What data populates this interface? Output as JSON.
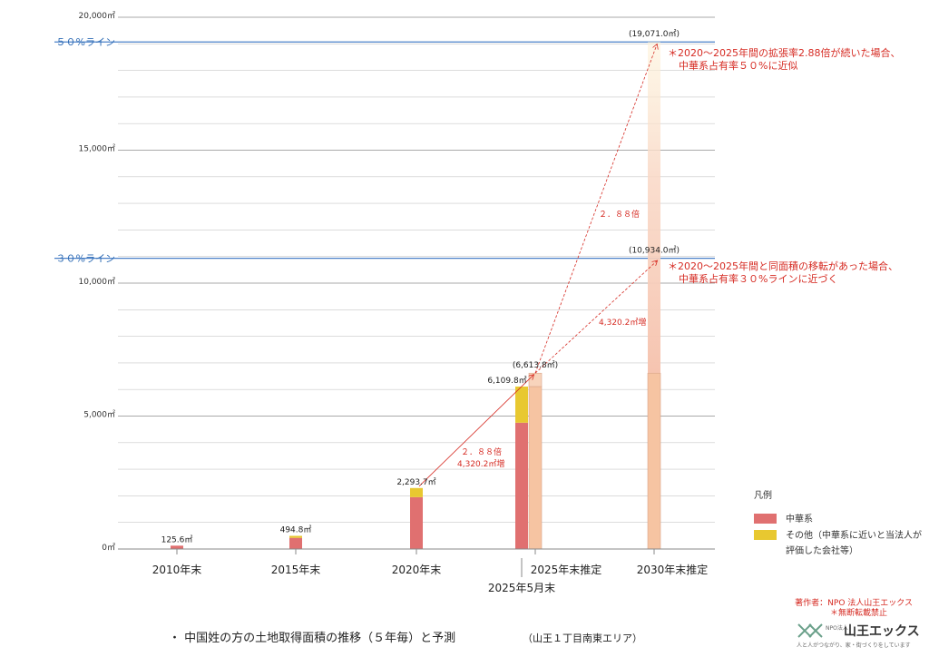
{
  "chart_data": {
    "type": "bar",
    "categories": [
      "2010年末",
      "2015年末",
      "2020年末",
      "2025年5月末",
      "2025年末推定",
      "2030年末推定"
    ],
    "series": [
      {
        "name": "中華系",
        "values": [
          125.6,
          420,
          1950,
          4750,
          null,
          null
        ]
      },
      {
        "name": "その他（中華系に近いと当法人が評価した会社等）",
        "values": [
          0,
          74.8,
          343.7,
          1359.8,
          null,
          null
        ]
      }
    ],
    "estimates": [
      {
        "category": "2025年末推定",
        "solid": 6109.8,
        "light_top": 6613.8
      },
      {
        "category": "2030年末推定",
        "solid": 6613.8,
        "gradient_top": 19071.0
      }
    ],
    "totals": [
      "125.6㎡",
      "494.8㎡",
      "2,293.7㎡",
      "6,109.8㎡"
    ],
    "ylim": [
      0,
      20000
    ],
    "yticks": [
      {
        "value": 0,
        "label": "0㎡"
      },
      {
        "value": 5000,
        "label": "5,000㎡"
      },
      {
        "value": 10000,
        "label": "10,000㎡"
      },
      {
        "value": 15000,
        "label": "15,000㎡"
      },
      {
        "value": 20000,
        "label": "20,000㎡"
      }
    ],
    "reference_lines": [
      {
        "value": 19071.0,
        "label": "５０%ライン"
      },
      {
        "value": 10934.0,
        "label": "３０%ライン"
      }
    ],
    "est_labels": [
      "(6,613.8㎡)",
      "(10,934.0㎡)",
      "(19,071.0㎡)"
    ],
    "annotations": {
      "growth_label_1": "２．８８倍",
      "growth_label_2": "4,320.2㎡増",
      "arrow_label_upper": "２．８８倍",
      "arrow_label_lower": "4,320.2㎡増",
      "note_50_line1": "＊2020～2025年間の拡張率2.88倍が続いた場合、",
      "note_50_line2": "中華系占有率５０%に近似",
      "note_30_line1": "＊2020～2025年間と同面積の移転があった場合、",
      "note_30_line2": "中華系占有率３０%ラインに近づく"
    },
    "legend": {
      "title": "凡例",
      "items": [
        "中華系",
        "その他（中華系に近いと当法人が",
        "評価した会社等）"
      ]
    },
    "caption": "・ 中国姓の方の土地取得面積の推移（５年毎）と予測",
    "caption_sub": "（山王１丁目南東エリア）",
    "credit_line1": "著作者：NPO 法人山王エックス",
    "credit_line2": "＊無断転載禁止",
    "logo": {
      "main": "山王エックス",
      "org": "NPO法人",
      "tagline": "人と人がつながり、家・街づくりをしています"
    },
    "colors": {
      "chinese": "#e07070",
      "other": "#e8c830",
      "estimate": "#f6c4a2",
      "ref_line": "#4a80c8",
      "grid": "#c8c8c8",
      "red_text": "#d62c24"
    }
  }
}
